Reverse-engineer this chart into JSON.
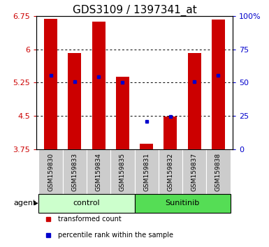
{
  "title": "GDS3109 / 1397341_at",
  "samples": [
    "GSM159830",
    "GSM159833",
    "GSM159834",
    "GSM159835",
    "GSM159831",
    "GSM159832",
    "GSM159837",
    "GSM159838"
  ],
  "red_values": [
    6.68,
    5.92,
    6.62,
    5.38,
    3.88,
    4.48,
    5.91,
    6.67
  ],
  "blue_values": [
    5.42,
    5.28,
    5.38,
    5.26,
    4.38,
    4.48,
    5.28,
    5.41
  ],
  "ylim_left": [
    3.75,
    6.75
  ],
  "ylim_right": [
    0,
    100
  ],
  "yticks_left": [
    3.75,
    4.5,
    5.25,
    6.0,
    6.75
  ],
  "yticks_right": [
    0,
    25,
    50,
    75,
    100
  ],
  "ytick_labels_left": [
    "3.75",
    "4.5",
    "5.25",
    "6",
    "6.75"
  ],
  "ytick_labels_right": [
    "0",
    "25",
    "50",
    "75",
    "100%"
  ],
  "groups": [
    {
      "label": "control",
      "indices": [
        0,
        1,
        2,
        3
      ],
      "color": "#ccffcc"
    },
    {
      "label": "Sunitinib",
      "indices": [
        4,
        5,
        6,
        7
      ],
      "color": "#55dd55"
    }
  ],
  "bar_color": "#cc0000",
  "dot_color": "#0000cc",
  "bar_bottom": 3.75,
  "bar_width": 0.55,
  "agent_label": "agent",
  "legend_items": [
    {
      "color": "#cc0000",
      "label": "transformed count"
    },
    {
      "color": "#0000cc",
      "label": "percentile rank within the sample"
    }
  ],
  "background_color": "#ffffff",
  "label_area_bg": "#cccccc",
  "title_fontsize": 11,
  "tick_fontsize": 8,
  "sample_label_fontsize": 6.5
}
